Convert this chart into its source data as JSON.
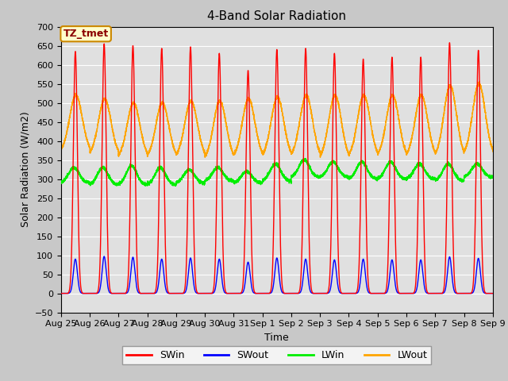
{
  "title": "4-Band Solar Radiation",
  "xlabel": "Time",
  "ylabel": "Solar Radiation (W/m2)",
  "ylim": [
    -50,
    700
  ],
  "background_color": "#c8c8c8",
  "plot_bg_color": "#e0e0e0",
  "grid_color": "#ffffff",
  "annotation_text": "TZ_tmet",
  "annotation_bg": "#ffffcc",
  "annotation_border": "#cc8800",
  "annotation_text_color": "#8b0000",
  "tick_labels": [
    "Aug 25",
    "Aug 26",
    "Aug 27",
    "Aug 28",
    "Aug 29",
    "Aug 30",
    "Aug 31",
    "Sep 1",
    "Sep 2",
    "Sep 3",
    "Sep 4",
    "Sep 5",
    "Sep 6",
    "Sep 7",
    "Sep 8",
    "Sep 9"
  ],
  "colors": {
    "SWin": "#ff0000",
    "SWout": "#0000ff",
    "LWin": "#00ee00",
    "LWout": "#ffa500"
  },
  "line_width": 1.0,
  "days": 15,
  "points_per_day": 480,
  "SWin_peaks": [
    635,
    655,
    650,
    643,
    647,
    630,
    585,
    640,
    643,
    630,
    615,
    620,
    620,
    658,
    638
  ],
  "SWout_peaks": [
    90,
    97,
    95,
    90,
    93,
    90,
    82,
    93,
    90,
    88,
    90,
    88,
    88,
    96,
    92
  ],
  "LWout_night": [
    370,
    360,
    355,
    355,
    355,
    350,
    355,
    355,
    355,
    350,
    355,
    355,
    355,
    355,
    360
  ],
  "LWout_peaks": [
    520,
    510,
    500,
    500,
    505,
    505,
    510,
    515,
    520,
    520,
    520,
    520,
    520,
    545,
    550
  ],
  "LWin_base": [
    290,
    285,
    285,
    285,
    290,
    295,
    290,
    295,
    305,
    305,
    300,
    300,
    300,
    295,
    305
  ],
  "LWin_peaks": [
    330,
    330,
    335,
    330,
    325,
    330,
    320,
    340,
    350,
    345,
    345,
    345,
    340,
    340,
    340
  ]
}
